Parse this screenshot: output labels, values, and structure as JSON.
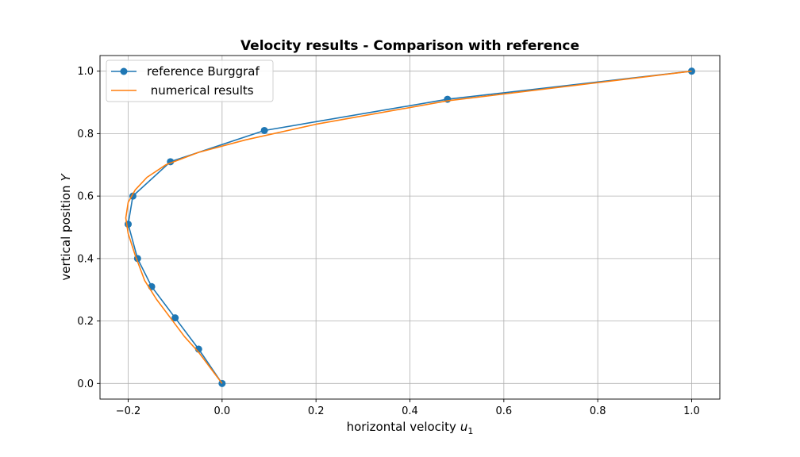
{
  "chart_data": {
    "type": "line",
    "title": "Velocity results - Comparison with reference",
    "xlabel": "horizontal velocity",
    "xlabel_symbol": "u",
    "xlabel_subscript": "1",
    "ylabel": "vertical position",
    "ylabel_symbol": "Y",
    "xlim": [
      -0.26,
      1.06
    ],
    "ylim": [
      -0.05,
      1.05
    ],
    "xticks": [
      -0.2,
      0.0,
      0.2,
      0.4,
      0.6,
      0.8,
      1.0
    ],
    "xtick_labels": [
      "−0.2",
      "0.0",
      "0.2",
      "0.4",
      "0.6",
      "0.8",
      "1.0"
    ],
    "yticks": [
      0.0,
      0.2,
      0.4,
      0.6,
      0.8,
      1.0
    ],
    "ytick_labels": [
      "0.0",
      "0.2",
      "0.4",
      "0.6",
      "0.8",
      "1.0"
    ],
    "grid": true,
    "legend_position": "top-left",
    "series": [
      {
        "name": "reference Burggraf",
        "color": "#1f77b4",
        "marker": "circle",
        "x": [
          0.0,
          -0.05,
          -0.1,
          -0.15,
          -0.18,
          -0.2,
          -0.19,
          -0.11,
          0.09,
          0.48,
          1.0
        ],
        "y": [
          0.0,
          0.11,
          0.21,
          0.31,
          0.4,
          0.51,
          0.6,
          0.71,
          0.81,
          0.91,
          1.0
        ]
      },
      {
        "name": " numerical results",
        "color": "#ff7f0e",
        "marker": "none",
        "x": [
          0.0,
          -0.02,
          -0.05,
          -0.08,
          -0.11,
          -0.14,
          -0.165,
          -0.185,
          -0.2,
          -0.205,
          -0.2,
          -0.185,
          -0.16,
          -0.12,
          -0.05,
          0.05,
          0.2,
          0.48,
          1.0
        ],
        "y": [
          0.0,
          0.04,
          0.1,
          0.15,
          0.21,
          0.27,
          0.33,
          0.41,
          0.48,
          0.53,
          0.58,
          0.62,
          0.66,
          0.7,
          0.74,
          0.78,
          0.83,
          0.905,
          1.0
        ]
      }
    ]
  }
}
